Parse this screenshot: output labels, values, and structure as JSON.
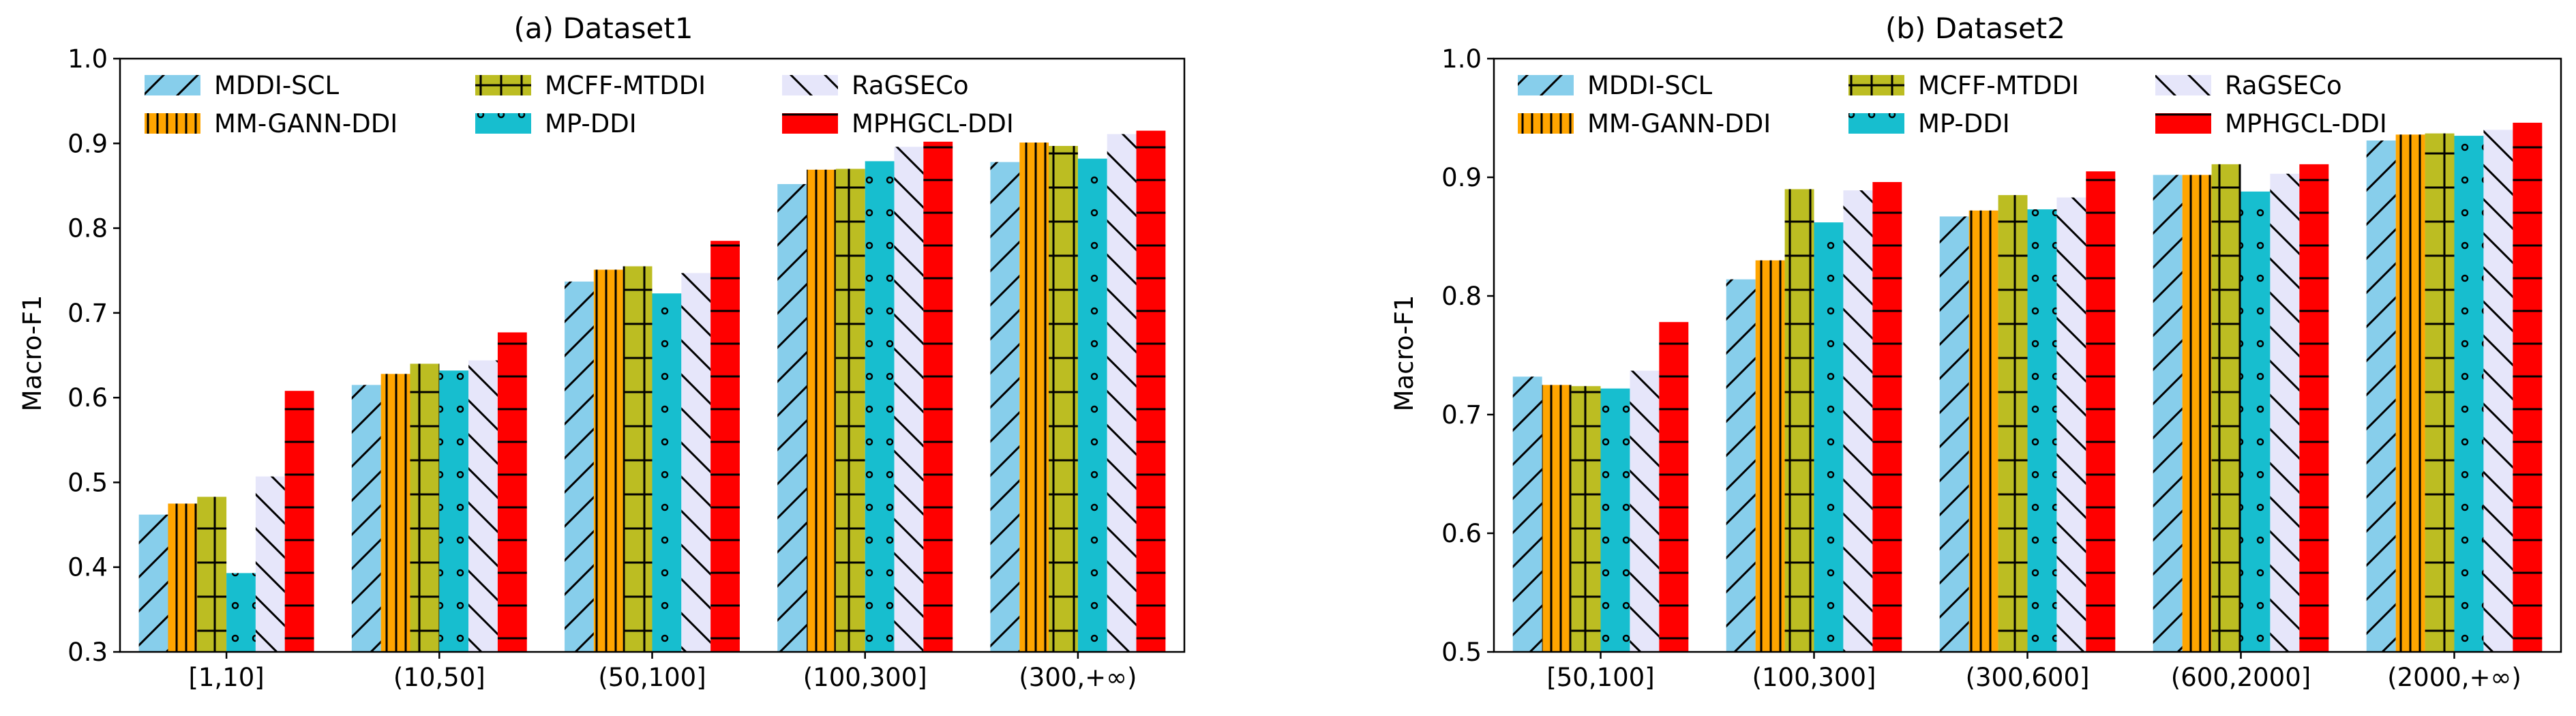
{
  "chart_data": [
    {
      "type": "bar",
      "title": "(a) Dataset1",
      "xlabel": "",
      "ylabel": "Macro-F1",
      "ylim": [
        0.3,
        1.0
      ],
      "yticks": [
        "0.3",
        "0.4",
        "0.5",
        "0.6",
        "0.7",
        "0.8",
        "0.9",
        "1.0"
      ],
      "grid": false,
      "legend_position": "top-left",
      "categories": [
        "[1,10]",
        "(10,50]",
        "(50,100]",
        "(100,300]",
        "(300,+∞)"
      ],
      "series": [
        {
          "name": "MDDI-SCL",
          "values": [
            0.462,
            0.615,
            0.737,
            0.852,
            0.878
          ]
        },
        {
          "name": "MM-GANN-DDI",
          "values": [
            0.475,
            0.628,
            0.751,
            0.869,
            0.901
          ]
        },
        {
          "name": "MCFF-MTDDI",
          "values": [
            0.483,
            0.64,
            0.755,
            0.87,
            0.897
          ]
        },
        {
          "name": "MP-DDI",
          "values": [
            0.393,
            0.632,
            0.723,
            0.879,
            0.882
          ]
        },
        {
          "name": "RaGSECo",
          "values": [
            0.507,
            0.644,
            0.747,
            0.896,
            0.911
          ]
        },
        {
          "name": "MPHGCL-DDI",
          "values": [
            0.608,
            0.677,
            0.785,
            0.902,
            0.915
          ]
        }
      ]
    },
    {
      "type": "bar",
      "title": "(b) Dataset2",
      "xlabel": "",
      "ylabel": "Macro-F1",
      "ylim": [
        0.5,
        1.0
      ],
      "yticks": [
        "0.5",
        "0.6",
        "0.7",
        "0.8",
        "0.9",
        "1.0"
      ],
      "grid": false,
      "legend_position": "top-left",
      "categories": [
        "[50,100]",
        "(100,300]",
        "(300,600]",
        "(600,2000]",
        "(2000,+∞)"
      ],
      "series": [
        {
          "name": "MDDI-SCL",
          "values": [
            0.732,
            0.814,
            0.867,
            0.902,
            0.931
          ]
        },
        {
          "name": "MM-GANN-DDI",
          "values": [
            0.725,
            0.83,
            0.872,
            0.902,
            0.936
          ]
        },
        {
          "name": "MCFF-MTDDI",
          "values": [
            0.724,
            0.89,
            0.885,
            0.911,
            0.937
          ]
        },
        {
          "name": "MP-DDI",
          "values": [
            0.722,
            0.862,
            0.873,
            0.888,
            0.935
          ]
        },
        {
          "name": "RaGSECo",
          "values": [
            0.737,
            0.889,
            0.883,
            0.903,
            0.94
          ]
        },
        {
          "name": "MPHGCL-DDI",
          "values": [
            0.778,
            0.896,
            0.905,
            0.911,
            0.946
          ]
        }
      ]
    }
  ],
  "series_styles": [
    {
      "color": "#87ceeb",
      "hatch": "forward-slash"
    },
    {
      "color": "#ffa500",
      "hatch": "vertical-line"
    },
    {
      "color": "#bcbd22",
      "hatch": "cross-line"
    },
    {
      "color": "#17becf",
      "hatch": "dots"
    },
    {
      "color": "#e6e6fa",
      "hatch": "back-slash"
    },
    {
      "color": "#ff0000",
      "hatch": "horizontal-line"
    }
  ]
}
